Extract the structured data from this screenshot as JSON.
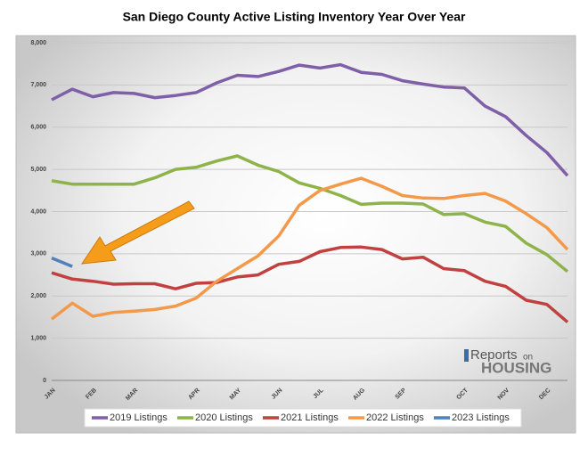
{
  "chart_data": {
    "type": "line",
    "title": "San Diego County Active Listing Inventory Year Over Year",
    "categories": [
      "JAN",
      null,
      "FEB",
      null,
      "MAR",
      null,
      null,
      "APR",
      null,
      "MAY",
      null,
      "JUN",
      null,
      "JUL",
      null,
      "AUG",
      null,
      "SEP",
      null,
      null,
      "OCT",
      null,
      "NOV",
      null,
      "DEC",
      null
    ],
    "ylim": [
      0,
      8000
    ],
    "yticks": [
      {
        "value": 0,
        "label": "0"
      },
      {
        "value": 1000,
        "label": "1,000"
      },
      {
        "value": 2000,
        "label": "2,000"
      },
      {
        "value": 3000,
        "label": "3,000"
      },
      {
        "value": 4000,
        "label": "4,000"
      },
      {
        "value": 5000,
        "label": "5,000"
      },
      {
        "value": 6000,
        "label": "6,000"
      },
      {
        "value": 7000,
        "label": "7,000"
      },
      {
        "value": 8000,
        "label": "8,000"
      }
    ],
    "grid": true,
    "legend": "bottom",
    "series": [
      {
        "name": "2019 Listings",
        "color": "#7f5fa8",
        "values": [
          6650,
          6900,
          6720,
          6820,
          6800,
          6700,
          6750,
          6820,
          7050,
          7230,
          7200,
          7320,
          7470,
          7400,
          7480,
          7300,
          7250,
          7100,
          7020,
          6950,
          6930,
          6500,
          6250,
          5800,
          5400,
          4850
        ]
      },
      {
        "name": "2020 Listings",
        "color": "#8db34a",
        "values": [
          4730,
          4650,
          4650,
          4650,
          4650,
          4800,
          5000,
          5050,
          5200,
          5320,
          5100,
          4950,
          4680,
          4550,
          4380,
          4170,
          4200,
          4200,
          4180,
          3930,
          3950,
          3750,
          3650,
          3250,
          2980,
          2580
        ]
      },
      {
        "name": "2021 Listings",
        "color": "#c0413f",
        "values": [
          2550,
          2400,
          2350,
          2280,
          2290,
          2290,
          2170,
          2300,
          2320,
          2450,
          2500,
          2750,
          2820,
          3050,
          3150,
          3160,
          3100,
          2880,
          2920,
          2650,
          2600,
          2350,
          2230,
          1900,
          1800,
          1380
        ]
      },
      {
        "name": "2022 Listings",
        "color": "#f3994a",
        "values": [
          1450,
          1830,
          1520,
          1610,
          1640,
          1680,
          1760,
          1950,
          2350,
          2650,
          2950,
          3420,
          4150,
          4500,
          4650,
          4790,
          4600,
          4380,
          4320,
          4310,
          4380,
          4430,
          4250,
          3950,
          3620,
          3100
        ]
      },
      {
        "name": "2023 Listings",
        "color": "#4f81bd",
        "values": [
          2900,
          2700,
          null,
          null,
          null,
          null,
          null,
          null,
          null,
          null,
          null,
          null,
          null,
          null,
          null,
          null,
          null,
          null,
          null,
          null,
          null,
          null,
          null,
          null,
          null,
          null
        ]
      }
    ],
    "logo": {
      "brand": "Reports",
      "small": "on",
      "word": "HOUSING"
    }
  }
}
